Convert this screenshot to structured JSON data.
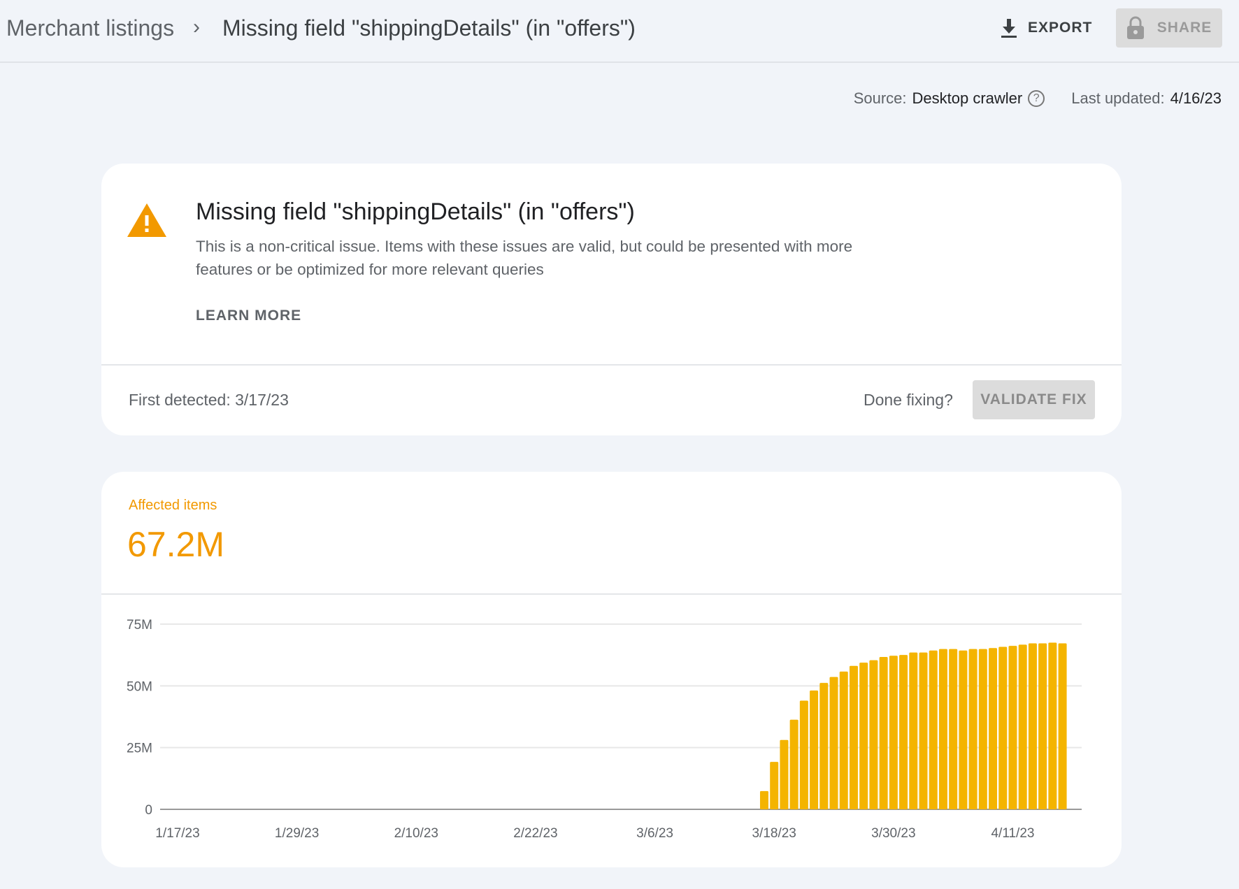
{
  "header": {
    "breadcrumb_root": "Merchant listings",
    "breadcrumb_sep": "›",
    "breadcrumb_current": "Missing field \"shippingDetails\" (in \"offers\")",
    "export_label": "EXPORT",
    "export_icon": "download-icon",
    "share_label": "SHARE",
    "share_icon": "lock-icon"
  },
  "meta": {
    "source_label": "Source:",
    "source_value": "Desktop crawler",
    "help_icon": "?",
    "updated_label": "Last updated:",
    "updated_value": "4/16/23"
  },
  "issue": {
    "icon": "warning-icon",
    "icon_color": "#f29900",
    "title": "Missing field \"shippingDetails\" (in \"offers\")",
    "description": "This is a non-critical issue. Items with these issues are valid, but could be presented with more features or be optimized for more relevant queries",
    "learn_more": "LEARN MORE",
    "first_detected": "First detected: 3/17/23",
    "done_fixing": "Done fixing?",
    "validate_fix": "VALIDATE FIX"
  },
  "affected": {
    "label": "Affected items",
    "value": "67.2M",
    "accent": "#f29900"
  },
  "chart_data": {
    "type": "bar",
    "x_start": "1/17/23",
    "x_end": "4/16/23",
    "x_ticks": [
      "1/17/23",
      "1/29/23",
      "2/10/23",
      "2/22/23",
      "3/6/23",
      "3/18/23",
      "3/30/23",
      "4/11/23"
    ],
    "y_ticks": [
      "0",
      "25M",
      "50M",
      "75M"
    ],
    "ylim": [
      0,
      75
    ],
    "y_unit": "M",
    "grid": true,
    "bar_color": "#f4b400",
    "first_bar_date": "3/17/23",
    "values": [
      7.4,
      19.2,
      28.1,
      36.3,
      44.0,
      48.1,
      51.2,
      53.6,
      55.8,
      58.1,
      59.4,
      60.4,
      61.7,
      62.2,
      62.5,
      63.5,
      63.5,
      64.3,
      64.9,
      64.9,
      64.3,
      64.9,
      64.9,
      65.3,
      65.8,
      66.2,
      66.7,
      67.2,
      67.2,
      67.5,
      67.2
    ]
  }
}
